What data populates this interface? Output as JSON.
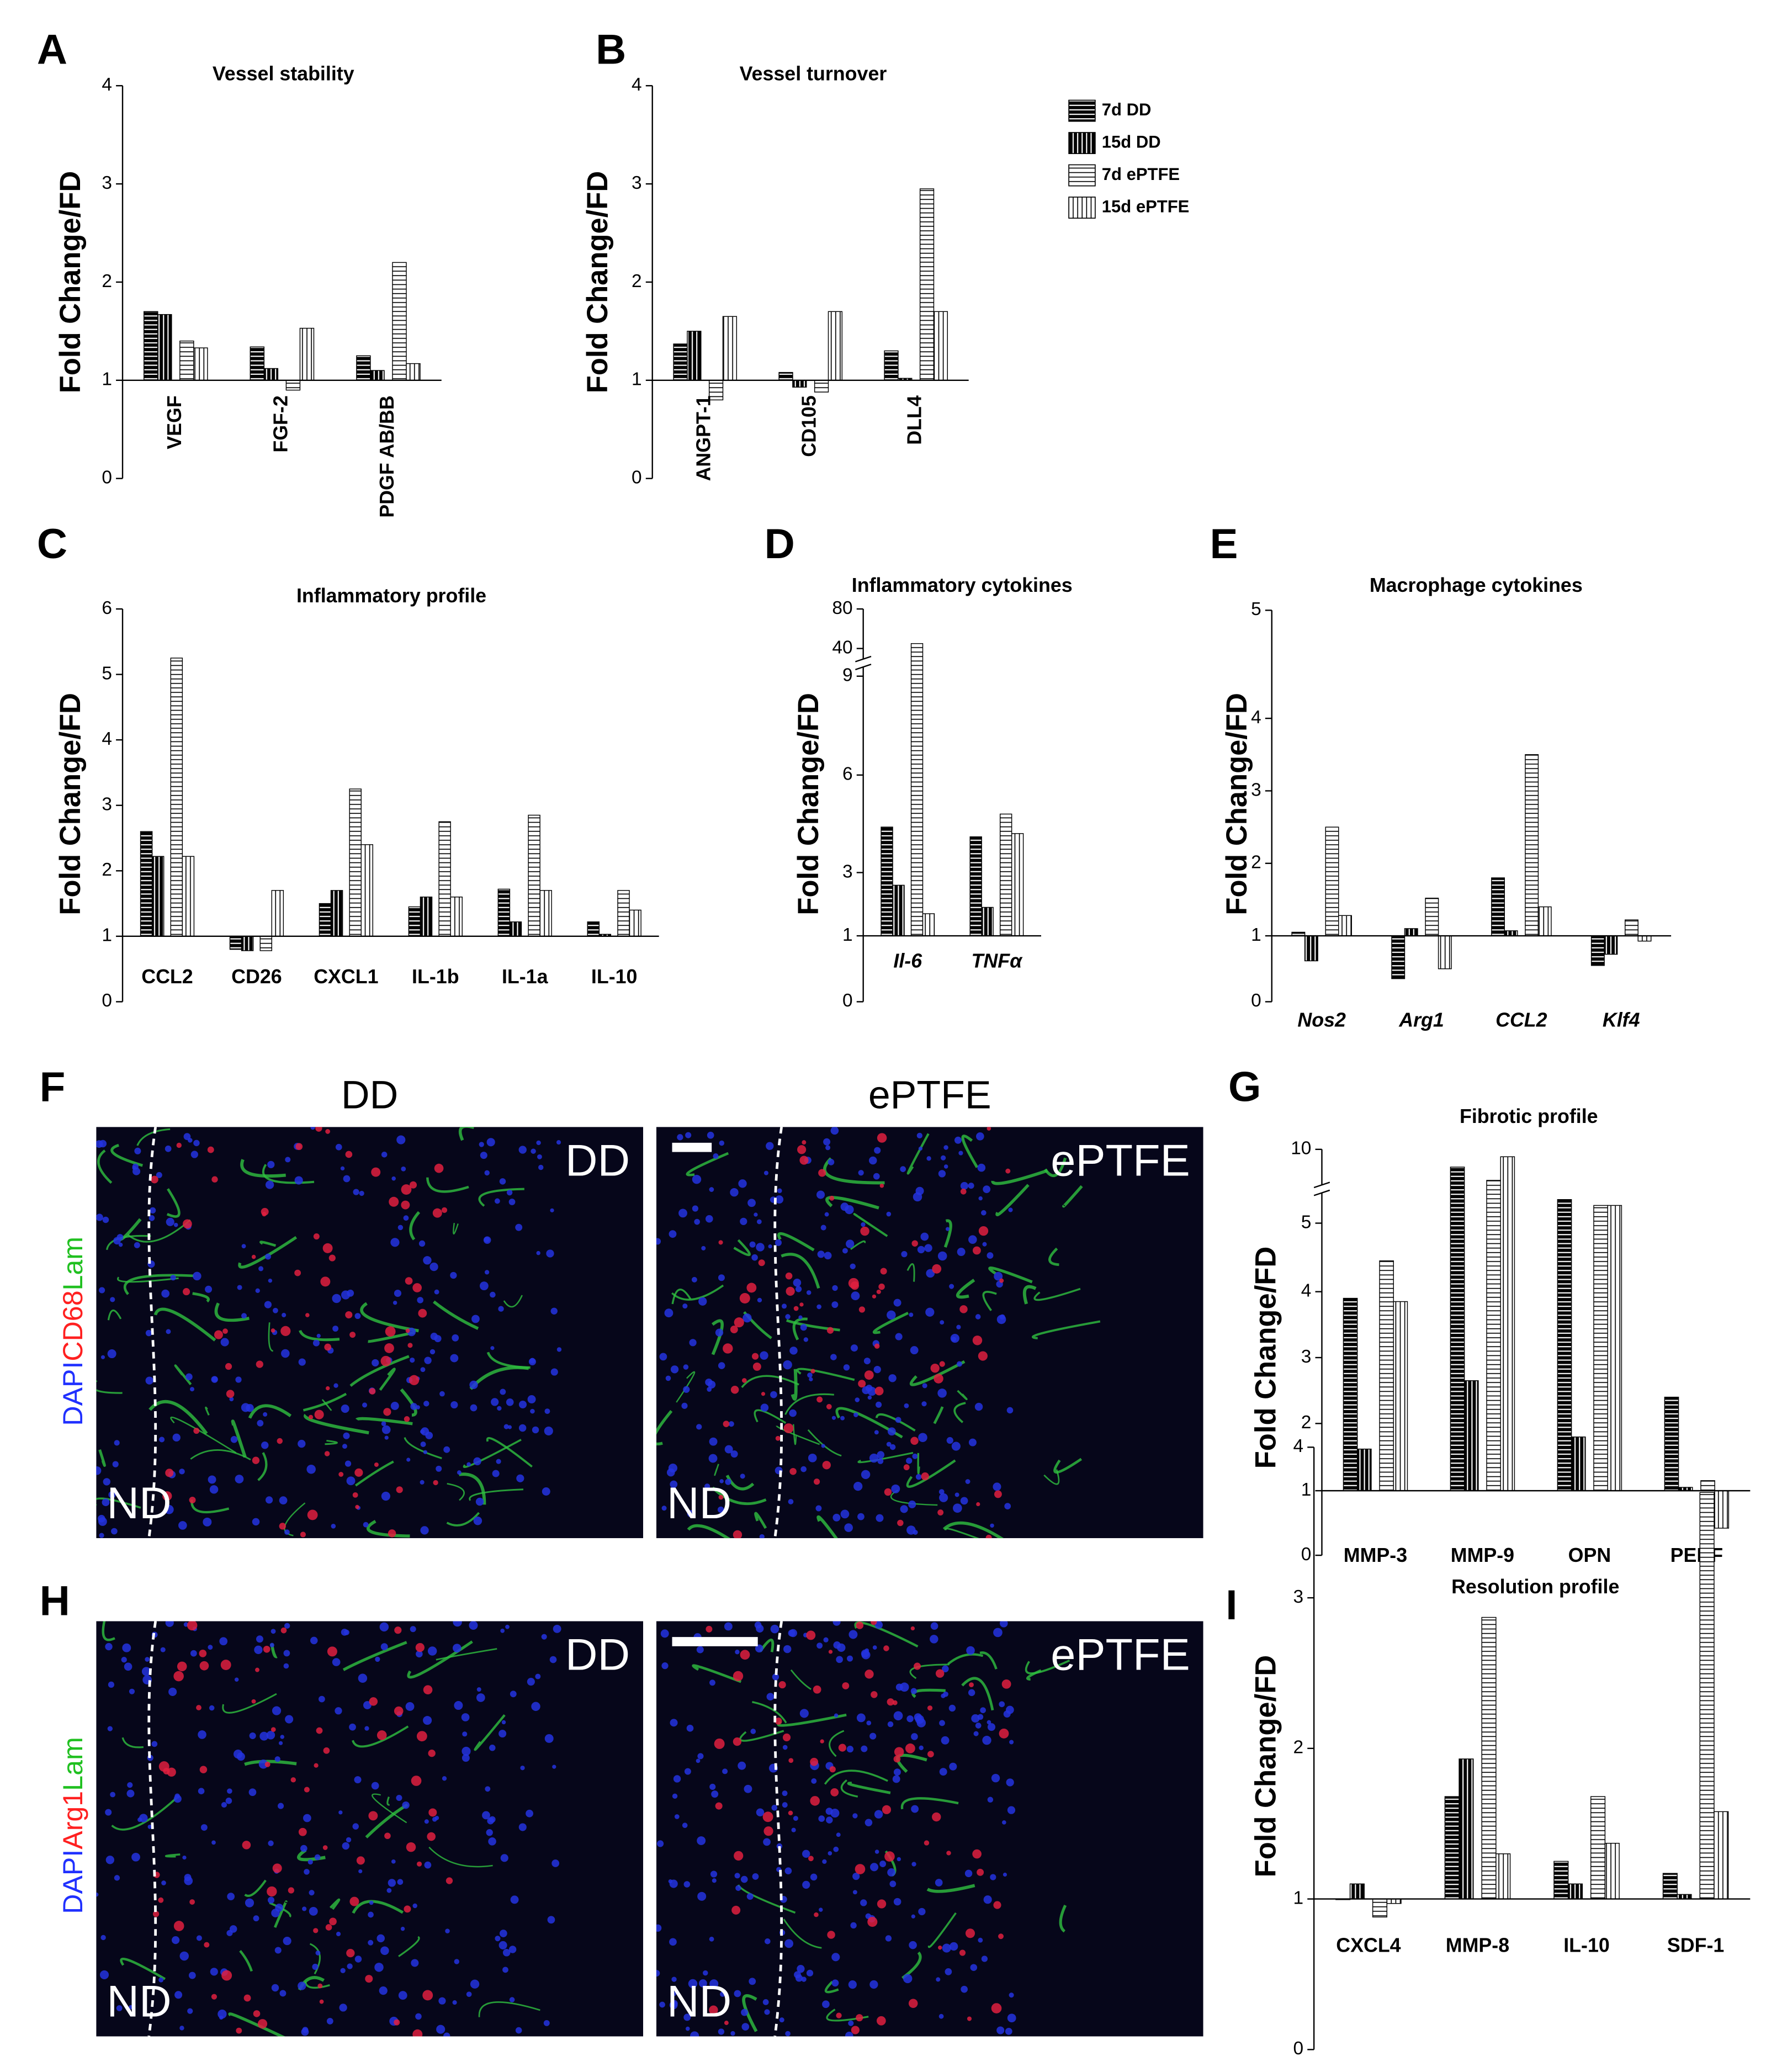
{
  "panel_labels": [
    "A",
    "B",
    "C",
    "D",
    "E",
    "F",
    "G",
    "H",
    "I"
  ],
  "legend": [
    {
      "name": "7d DD",
      "color": "#000000",
      "hatch": "horizontal"
    },
    {
      "name": "15d DD",
      "color": "#000000",
      "hatch": "vertical"
    },
    {
      "name": "7d ePTFE",
      "color": "#ffffff",
      "hatch": "horizontal"
    },
    {
      "name": "15d ePTFE",
      "color": "#ffffff",
      "hatch": "vertical"
    }
  ],
  "chart_data": [
    {
      "type": "bar",
      "title": "Vessel stability",
      "y_label": "Fold Change/FD",
      "baseline": 1,
      "categories": [
        "VEGF",
        "FGF-2",
        "PDGF AB/BB"
      ],
      "ylim": [
        0,
        4
      ],
      "yticks": [
        0,
        1,
        2,
        3,
        4
      ],
      "series": [
        {
          "values": [
            1.7,
            1.34,
            1.25
          ]
        },
        {
          "values": [
            1.67,
            1.12,
            1.1
          ]
        },
        {
          "values": [
            1.4,
            0.9,
            2.2
          ]
        },
        {
          "values": [
            1.33,
            1.53,
            1.17
          ]
        }
      ]
    },
    {
      "type": "bar",
      "title": "Vessel turnover",
      "y_label": "Fold Change/FD",
      "baseline": 1,
      "categories": [
        "ANGPT-1",
        "CD105",
        "DLL4"
      ],
      "ylim": [
        0,
        4
      ],
      "yticks": [
        0,
        1,
        2,
        3,
        4
      ],
      "series": [
        {
          "values": [
            1.37,
            1.08,
            1.3
          ]
        },
        {
          "values": [
            1.5,
            0.93,
            1.02
          ]
        },
        {
          "values": [
            0.8,
            0.88,
            2.95
          ]
        },
        {
          "values": [
            1.65,
            1.7,
            1.7
          ]
        }
      ]
    },
    {
      "type": "bar",
      "title": "Inflammatory profile",
      "y_label": "Fold Change/FD",
      "baseline": 1,
      "categories": [
        "CCL2",
        "CD26",
        "CXCL1",
        "IL-1b",
        "IL-1a",
        "IL-10"
      ],
      "ylim": [
        0,
        6
      ],
      "yticks": [
        0,
        1,
        2,
        3,
        4,
        5,
        6
      ],
      "series": [
        {
          "values": [
            2.6,
            0.8,
            1.5,
            1.45,
            1.72,
            1.22
          ]
        },
        {
          "values": [
            2.22,
            0.78,
            1.7,
            1.6,
            1.22,
            1.03
          ]
        },
        {
          "values": [
            5.25,
            0.78,
            3.25,
            2.75,
            2.85,
            1.7
          ]
        },
        {
          "values": [
            2.22,
            1.7,
            2.4,
            1.6,
            1.7,
            1.4
          ]
        }
      ]
    },
    {
      "type": "bar",
      "title": "Inflammatory cytokines",
      "y_label": "Fold Change/FD",
      "baseline": 1,
      "categories": [
        "Il-6",
        "TNFα"
      ],
      "ylim": [
        0,
        80
      ],
      "yticks": [
        0,
        1,
        3,
        6,
        9,
        40,
        80
      ],
      "series": [
        {
          "values": [
            4.4,
            4.1
          ]
        },
        {
          "values": [
            2.6,
            1.9
          ]
        },
        {
          "values": [
            45,
            4.8
          ]
        },
        {
          "values": [
            1.7,
            4.2
          ]
        }
      ]
    },
    {
      "type": "bar",
      "title": "Macrophage cytokines",
      "y_label": "Fold Change/FD",
      "baseline": 1,
      "categories": [
        "Nos2",
        "Arg1",
        "CCL2",
        "Klf4"
      ],
      "ylim": [
        0,
        5
      ],
      "yticks": [
        0,
        1,
        2,
        3,
        4,
        5
      ],
      "series": [
        {
          "values": [
            1.05,
            0.35,
            1.8,
            0.55
          ]
        },
        {
          "values": [
            0.62,
            1.1,
            1.07,
            0.72
          ]
        },
        {
          "values": [
            2.5,
            1.52,
            3.5,
            1.22
          ]
        },
        {
          "values": [
            1.28,
            0.5,
            1.4,
            0.92
          ]
        }
      ]
    },
    {
      "type": "bar",
      "title": "Fibrotic profile",
      "y_label": "Fold Change/FD",
      "baseline": 1,
      "categories": [
        "MMP-3",
        "MMP-9",
        "OPN",
        "PEDF"
      ],
      "ylim": [
        0,
        10
      ],
      "yticks": [
        0,
        1,
        2,
        3,
        4,
        5,
        10
      ],
      "series": [
        {
          "values": [
            3.9,
            8.8,
            6.6,
            2.4
          ]
        },
        {
          "values": [
            1.62,
            2.65,
            1.8,
            1.05
          ]
        },
        {
          "values": [
            4.45,
            7.9,
            6.2,
            1.15
          ]
        },
        {
          "values": [
            3.85,
            9.5,
            6.2,
            0.42
          ]
        }
      ]
    },
    {
      "type": "bar",
      "title": "Resolution profile",
      "y_label": "Fold Change/FD",
      "baseline": 1,
      "categories": [
        "CXCL4",
        "MMP-8",
        "IL-10",
        "SDF-1"
      ],
      "ylim": [
        0,
        4
      ],
      "yticks": [
        0,
        1,
        2,
        3,
        4
      ],
      "series": [
        {
          "values": [
            1.0,
            1.68,
            1.25,
            1.17
          ]
        },
        {
          "values": [
            1.1,
            1.93,
            1.1,
            1.03
          ]
        },
        {
          "values": [
            0.88,
            2.87,
            1.68,
            3.7
          ]
        },
        {
          "values": [
            0.97,
            1.3,
            1.37,
            1.58
          ]
        }
      ]
    }
  ],
  "micrographs": [
    {
      "stain": [
        "DAPI",
        "CD68",
        "Lam"
      ],
      "images": [
        {
          "header": "DD",
          "inset": "DD",
          "region": "ND"
        },
        {
          "header": "ePTFE",
          "inset": "ePTFE",
          "region": "ND"
        }
      ]
    },
    {
      "stain": [
        "DAPI",
        "Arg1",
        "Lam"
      ],
      "images": [
        {
          "inset": "DD",
          "region": "ND"
        },
        {
          "inset": "ePTFE",
          "region": "ND"
        }
      ]
    }
  ]
}
